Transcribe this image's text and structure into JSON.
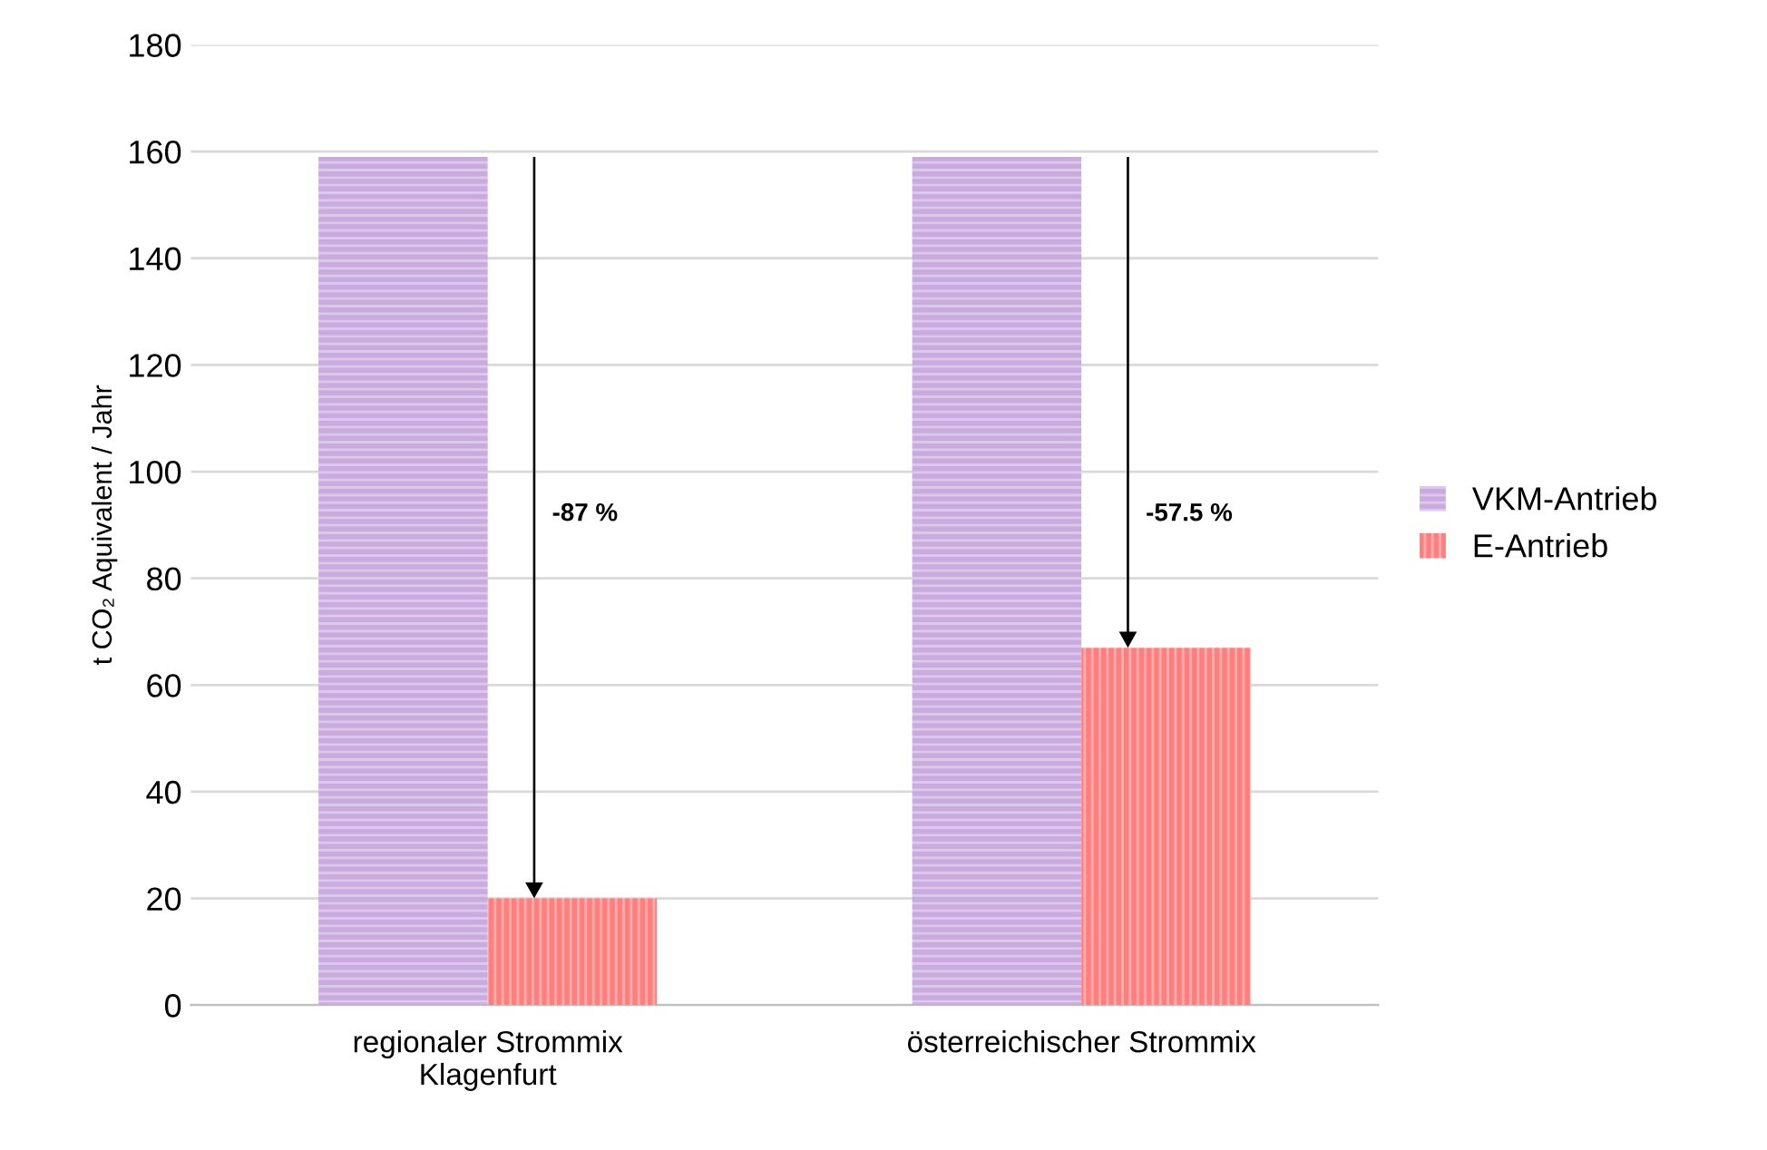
{
  "chart_data": {
    "type": "bar",
    "ylabel": "t CO₂ Aquivalent / Jahr",
    "categories": [
      "regionaler Strommix\nKlagenfurt",
      "österreichischer Strommix"
    ],
    "series": [
      {
        "name": "VKM-Antrieb",
        "color": "#c9abdf",
        "values": [
          159,
          159
        ]
      },
      {
        "name": "E-Antrieb",
        "color": "#ff7f7f",
        "values": [
          20,
          67
        ]
      }
    ],
    "annotations": [
      {
        "text": "-87 %",
        "x": "regionaler Strommix\nKlagenfurt",
        "y": 92
      },
      {
        "text": "-57.5 %",
        "x": "österreichischer Strommix",
        "y": 92
      }
    ],
    "ylim": [
      0,
      180
    ],
    "yticks": [
      0,
      20,
      40,
      60,
      80,
      100,
      120,
      140,
      160,
      180
    ],
    "grid": "y",
    "legend": "right"
  }
}
